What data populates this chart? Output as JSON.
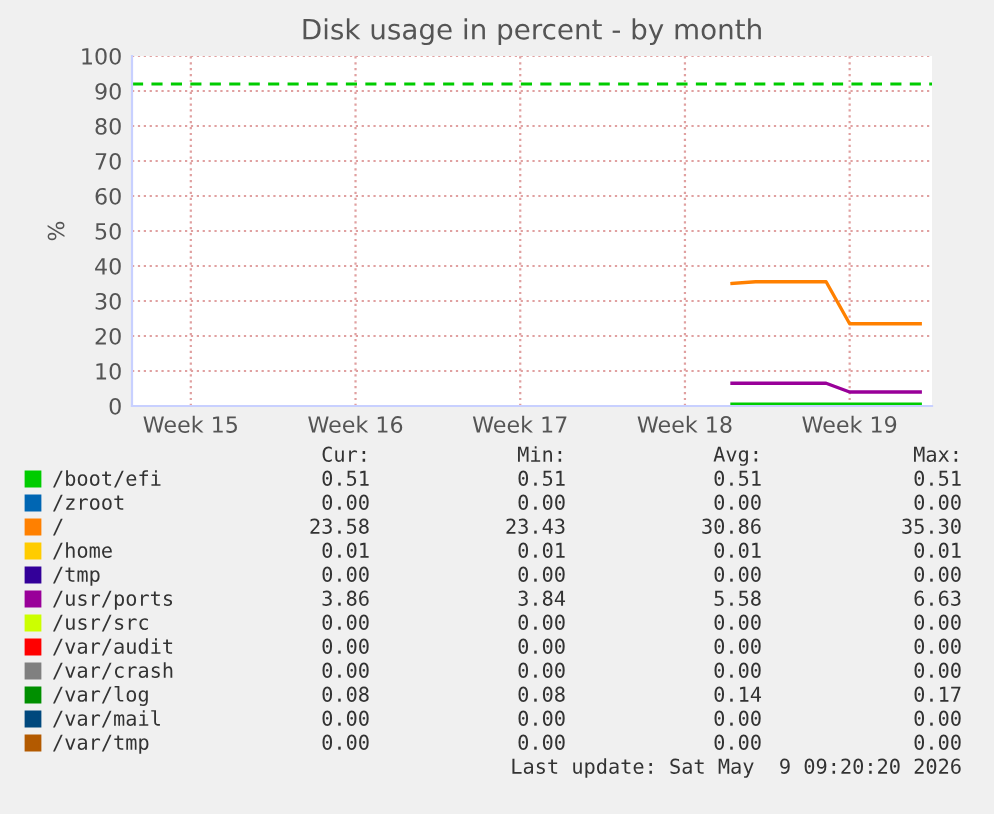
{
  "chart_data": {
    "type": "line",
    "title": "Disk usage in percent - by month",
    "ylabel": "%",
    "categories": [
      null,
      null,
      null,
      "Week 15",
      null,
      null,
      null,
      null,
      null,
      null,
      "Week 16",
      null,
      null,
      null,
      null,
      null,
      null,
      "Week 17",
      null,
      null,
      null,
      null,
      null,
      null,
      "Week 18",
      null,
      null,
      null,
      null,
      null,
      null,
      "Week 19",
      null,
      null,
      null
    ],
    "ylim": [
      0,
      100
    ],
    "yticks": [
      0,
      10,
      20,
      30,
      40,
      50,
      60,
      70,
      80,
      90,
      100
    ],
    "grid": true,
    "legend": "bottom",
    "ref_lines": [
      {
        "axis": "y",
        "value": 92,
        "color": "#00cc00",
        "line_style": "dashed"
      }
    ],
    "series": [
      {
        "name": "/boot/efi",
        "color": "#00cc00",
        "values": [
          null,
          null,
          null,
          null,
          null,
          null,
          null,
          null,
          null,
          null,
          null,
          null,
          null,
          null,
          null,
          null,
          null,
          null,
          null,
          null,
          null,
          null,
          null,
          null,
          null,
          null,
          0.5,
          0.5,
          0.5,
          0.5,
          0.5,
          0.5,
          0.5,
          0.5,
          0.5
        ]
      },
      {
        "name": "/zroot",
        "color": "#0066b3",
        "values": [
          null,
          null,
          null,
          null,
          null,
          null,
          null,
          null,
          null,
          null,
          null,
          null,
          null,
          null,
          null,
          null,
          null,
          null,
          null,
          null,
          null,
          null,
          null,
          null,
          null,
          null,
          null,
          null,
          null,
          null,
          null,
          null,
          null,
          null,
          null
        ]
      },
      {
        "name": "/",
        "color": "#ff8000",
        "values": [
          null,
          null,
          null,
          null,
          null,
          null,
          null,
          null,
          null,
          null,
          null,
          null,
          null,
          null,
          null,
          null,
          null,
          null,
          null,
          null,
          null,
          null,
          null,
          null,
          null,
          null,
          35,
          35.5,
          35.5,
          35.5,
          35.5,
          23.5,
          23.5,
          23.5,
          23.5
        ]
      },
      {
        "name": "/home",
        "color": "#ffcc00",
        "values": [
          null,
          null,
          null,
          null,
          null,
          null,
          null,
          null,
          null,
          null,
          null,
          null,
          null,
          null,
          null,
          null,
          null,
          null,
          null,
          null,
          null,
          null,
          null,
          null,
          null,
          null,
          null,
          null,
          null,
          null,
          null,
          null,
          null,
          null,
          null
        ]
      },
      {
        "name": "/tmp",
        "color": "#330099",
        "values": [
          null,
          null,
          null,
          null,
          null,
          null,
          null,
          null,
          null,
          null,
          null,
          null,
          null,
          null,
          null,
          null,
          null,
          null,
          null,
          null,
          null,
          null,
          null,
          null,
          null,
          null,
          null,
          null,
          null,
          null,
          null,
          null,
          null,
          null,
          null
        ]
      },
      {
        "name": "/usr/ports",
        "color": "#990099",
        "values": [
          null,
          null,
          null,
          null,
          null,
          null,
          null,
          null,
          null,
          null,
          null,
          null,
          null,
          null,
          null,
          null,
          null,
          null,
          null,
          null,
          null,
          null,
          null,
          null,
          null,
          null,
          6.5,
          6.5,
          6.5,
          6.5,
          6.5,
          4,
          4,
          4,
          4
        ]
      },
      {
        "name": "/usr/src",
        "color": "#ccff00",
        "values": [
          null,
          null,
          null,
          null,
          null,
          null,
          null,
          null,
          null,
          null,
          null,
          null,
          null,
          null,
          null,
          null,
          null,
          null,
          null,
          null,
          null,
          null,
          null,
          null,
          null,
          null,
          null,
          null,
          null,
          null,
          null,
          null,
          null,
          null,
          null
        ]
      },
      {
        "name": "/var/audit",
        "color": "#ff0000",
        "values": [
          null,
          null,
          null,
          null,
          null,
          null,
          null,
          null,
          null,
          null,
          null,
          null,
          null,
          null,
          null,
          null,
          null,
          null,
          null,
          null,
          null,
          null,
          null,
          null,
          null,
          null,
          null,
          null,
          null,
          null,
          null,
          null,
          null,
          null,
          null
        ]
      },
      {
        "name": "/var/crash",
        "color": "#808080",
        "values": [
          null,
          null,
          null,
          null,
          null,
          null,
          null,
          null,
          null,
          null,
          null,
          null,
          null,
          null,
          null,
          null,
          null,
          null,
          null,
          null,
          null,
          null,
          null,
          null,
          null,
          null,
          null,
          null,
          null,
          null,
          null,
          null,
          null,
          null,
          null
        ]
      },
      {
        "name": "/var/log",
        "color": "#008f00",
        "values": [
          null,
          null,
          null,
          null,
          null,
          null,
          null,
          null,
          null,
          null,
          null,
          null,
          null,
          null,
          null,
          null,
          null,
          null,
          null,
          null,
          null,
          null,
          null,
          null,
          null,
          null,
          null,
          null,
          null,
          null,
          null,
          null,
          null,
          null,
          null
        ]
      },
      {
        "name": "/var/mail",
        "color": "#00487d",
        "values": [
          null,
          null,
          null,
          null,
          null,
          null,
          null,
          null,
          null,
          null,
          null,
          null,
          null,
          null,
          null,
          null,
          null,
          null,
          null,
          null,
          null,
          null,
          null,
          null,
          null,
          null,
          null,
          null,
          null,
          null,
          null,
          null,
          null,
          null,
          null
        ]
      },
      {
        "name": "/var/tmp",
        "color": "#b35a00",
        "values": [
          null,
          null,
          null,
          null,
          null,
          null,
          null,
          null,
          null,
          null,
          null,
          null,
          null,
          null,
          null,
          null,
          null,
          null,
          null,
          null,
          null,
          null,
          null,
          null,
          null,
          null,
          null,
          null,
          null,
          null,
          null,
          null,
          null,
          null,
          null
        ]
      }
    ],
    "annotations": [
      "Cur:",
      "Min:",
      "Avg:",
      "Max:",
      "0.51",
      "0.51",
      "0.51",
      "0.51",
      "0.00",
      "0.00",
      "0.00",
      "0.00",
      "23.58",
      "23.43",
      "30.86",
      "35.30",
      "0.01",
      "0.01",
      "0.01",
      "0.01",
      "0.00",
      "0.00",
      "0.00",
      "0.00",
      "3.86",
      "3.84",
      "5.58",
      "6.63",
      "0.00",
      "0.00",
      "0.00",
      "0.00",
      "0.00",
      "0.00",
      "0.00",
      "0.00",
      "0.00",
      "0.00",
      "0.00",
      "0.00",
      "0.08",
      "0.08",
      "0.14",
      "0.17",
      "0.00",
      "0.00",
      "0.00",
      "0.00",
      "0.00",
      "0.00",
      "0.00",
      "0.00",
      "Last update: Sat May  9 09:20:20 2026"
    ]
  }
}
